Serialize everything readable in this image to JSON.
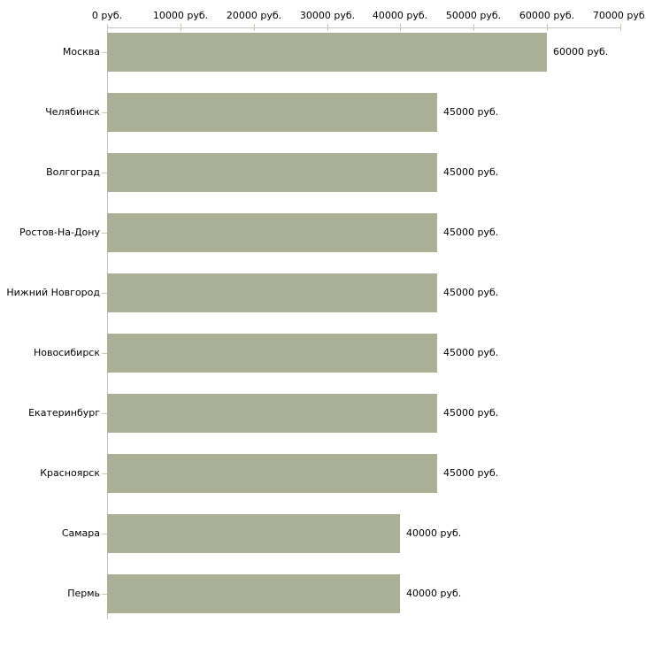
{
  "chart_data": {
    "type": "bar",
    "orientation": "horizontal",
    "title": "",
    "xlabel": "",
    "ylabel": "",
    "grid": false,
    "legend": false,
    "xlim": [
      0,
      70000
    ],
    "x_ticks": [
      0,
      10000,
      20000,
      30000,
      40000,
      50000,
      60000,
      70000
    ],
    "x_tick_labels": [
      "0 руб.",
      "10000 руб.",
      "20000 руб.",
      "30000 руб.",
      "40000 руб.",
      "50000 руб.",
      "60000 руб.",
      "70000 руб."
    ],
    "categories": [
      "Москва",
      "Челябинск",
      "Волгоград",
      "Ростов-На-Дону",
      "Нижний Новгород",
      "Новосибирск",
      "Екатеринбург",
      "Красноярск",
      "Самара",
      "Пермь"
    ],
    "values": [
      60000,
      45000,
      45000,
      45000,
      45000,
      45000,
      45000,
      45000,
      40000,
      40000
    ],
    "value_labels": [
      "60000 руб.",
      "45000 руб.",
      "45000 руб.",
      "45000 руб.",
      "45000 руб.",
      "45000 руб.",
      "45000 руб.",
      "45000 руб.",
      "40000 руб.",
      "40000 руб."
    ],
    "unit_suffix": " руб.",
    "bar_color": "#aab095",
    "axis_line_color": "#c4c4c4",
    "tick_color": "#c9c9a0",
    "label_color": "#000000",
    "background_color": "#ffffff"
  }
}
